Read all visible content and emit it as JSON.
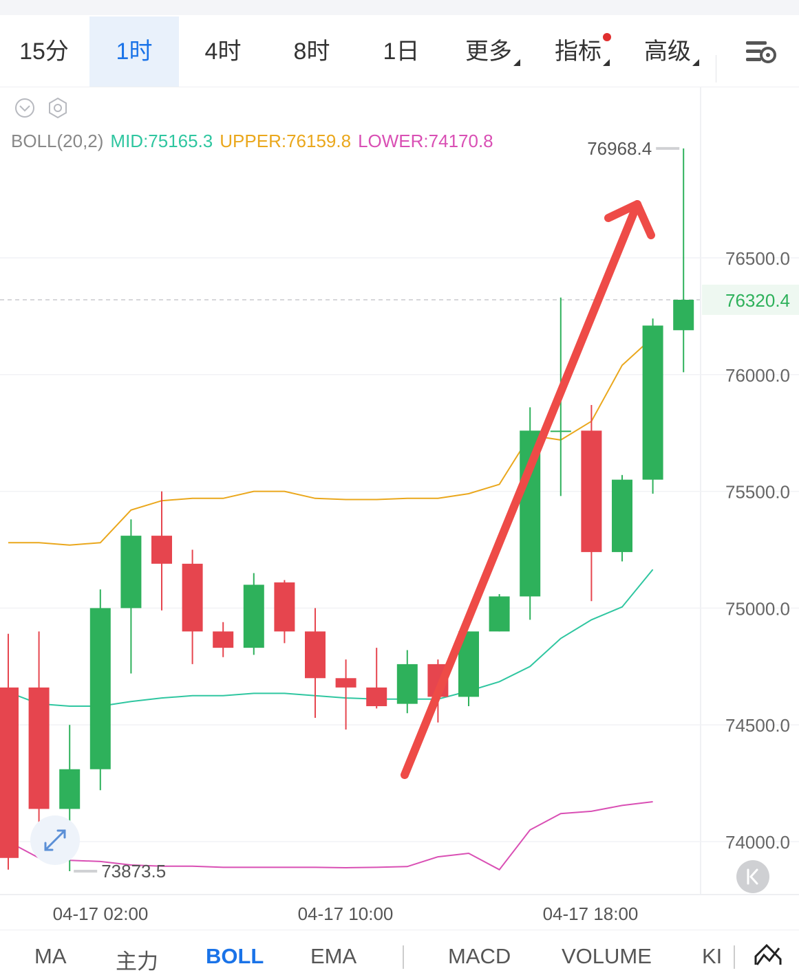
{
  "tabs": {
    "items": [
      {
        "label": "15分",
        "active": false
      },
      {
        "label": "1时",
        "active": true
      },
      {
        "label": "4时",
        "active": false
      },
      {
        "label": "8时",
        "active": false
      },
      {
        "label": "1日",
        "active": false
      },
      {
        "label": "更多",
        "active": false,
        "dropdown": true
      },
      {
        "label": "指标",
        "active": false,
        "dropdown": true,
        "notification": true
      },
      {
        "label": "高级",
        "active": false,
        "dropdown": true
      }
    ],
    "settings_icon": "chart-settings-icon"
  },
  "indicator": {
    "name": "BOLL(20,2)",
    "mid": "MID:75165.3",
    "upper": "UPPER:76159.8",
    "lower": "LOWER:74170.8",
    "colors": {
      "mid": "#2fc6a0",
      "upper": "#eaa71c",
      "lower": "#d94fb4",
      "name": "#888888"
    }
  },
  "toolbar_icons": [
    "collapse-icon",
    "indicator-settings-icon"
  ],
  "chart_data": {
    "type": "candlestick",
    "ylim": [
      73700,
      77200
    ],
    "y_ticks": [
      "76500.0",
      "76000.0",
      "75500.0",
      "75000.0",
      "74500.0",
      "74000.0"
    ],
    "x_ticks": [
      "04-17 02:00",
      "04-17 10:00",
      "04-17 18:00"
    ],
    "last_price": "76320.4",
    "high_marker": "76968.4",
    "low_marker": "73873.5",
    "colors": {
      "up": "#2eb15b",
      "down": "#e6454e",
      "annotation": "#ee4b47"
    },
    "candles": [
      {
        "o": 74660,
        "h": 74890,
        "l": 73880,
        "c": 73930
      },
      {
        "o": 74660,
        "h": 74900,
        "l": 73950,
        "c": 74140
      },
      {
        "o": 74140,
        "h": 74500,
        "l": 73873.5,
        "c": 74310
      },
      {
        "o": 74310,
        "h": 75080,
        "l": 74220,
        "c": 75000
      },
      {
        "o": 75000,
        "h": 75380,
        "l": 74720,
        "c": 75310
      },
      {
        "o": 75310,
        "h": 75500,
        "l": 74990,
        "c": 75190
      },
      {
        "o": 75190,
        "h": 75250,
        "l": 74760,
        "c": 74900
      },
      {
        "o": 74900,
        "h": 74940,
        "l": 74790,
        "c": 74830
      },
      {
        "o": 74830,
        "h": 75150,
        "l": 74800,
        "c": 75100
      },
      {
        "o": 75110,
        "h": 75120,
        "l": 74850,
        "c": 74900
      },
      {
        "o": 74900,
        "h": 75000,
        "l": 74530,
        "c": 74700
      },
      {
        "o": 74700,
        "h": 74780,
        "l": 74480,
        "c": 74660
      },
      {
        "o": 74660,
        "h": 74830,
        "l": 74570,
        "c": 74580
      },
      {
        "o": 74590,
        "h": 74820,
        "l": 74550,
        "c": 74760
      },
      {
        "o": 74760,
        "h": 74780,
        "l": 74510,
        "c": 74620
      },
      {
        "o": 74620,
        "h": 74900,
        "l": 74580,
        "c": 74900
      },
      {
        "o": 74900,
        "h": 75060,
        "l": 74900,
        "c": 75050
      },
      {
        "o": 75050,
        "h": 75860,
        "l": 74950,
        "c": 75760
      },
      {
        "o": 75760,
        "h": 76330,
        "l": 75480,
        "c": 75760
      },
      {
        "o": 75760,
        "h": 75870,
        "l": 75030,
        "c": 75240
      },
      {
        "o": 75240,
        "h": 75570,
        "l": 75200,
        "c": 75550
      },
      {
        "o": 75550,
        "h": 76240,
        "l": 75490,
        "c": 76210
      },
      {
        "o": 76190,
        "h": 76968.4,
        "l": 76010,
        "c": 76320.4
      }
    ],
    "boll_upper": [
      75280,
      75280,
      75270,
      75280,
      75420,
      75460,
      75470,
      75470,
      75500,
      75500,
      75470,
      75465,
      75465,
      75470,
      75470,
      75490,
      75530,
      75740,
      75720,
      75800,
      76040,
      76159.8
    ],
    "boll_mid": [
      74640,
      74590,
      74580,
      74580,
      74600,
      74615,
      74625,
      74625,
      74635,
      74635,
      74625,
      74615,
      74610,
      74610,
      74610,
      74645,
      74685,
      74750,
      74870,
      74950,
      75005,
      75165.3
    ],
    "boll_lower": [
      74000,
      73930,
      73920,
      73915,
      73900,
      73895,
      73895,
      73890,
      73890,
      73890,
      73890,
      73888,
      73890,
      73893,
      73935,
      73950,
      73880,
      74050,
      74120,
      74130,
      74155,
      74170.8
    ]
  },
  "bottom_nav": {
    "items": [
      {
        "label": "MA",
        "active": false
      },
      {
        "label": "主力",
        "active": false
      },
      {
        "label": "BOLL",
        "active": true
      },
      {
        "label": "EMA",
        "active": false
      },
      {
        "label": "MACD",
        "active": false
      },
      {
        "label": "VOLUME",
        "active": false
      },
      {
        "label": "KI",
        "active": false
      }
    ],
    "right_icon": "line-chart-icon"
  }
}
